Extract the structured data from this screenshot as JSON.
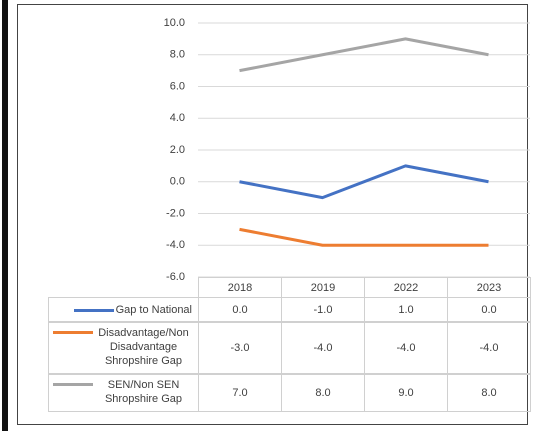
{
  "chart_data": {
    "type": "line",
    "categories": [
      "2018",
      "2019",
      "2022",
      "2023"
    ],
    "series": [
      {
        "name": "Gap to National",
        "color": "#4472c4",
        "values": [
          0,
          -1,
          1,
          0
        ],
        "value_labels": [
          "0.0",
          "-1.0",
          "1.0",
          "0.0"
        ]
      },
      {
        "name": "Disadvantage/Non Disadvantage Shropshire Gap",
        "color": "#ed7d31",
        "values": [
          -3,
          -4,
          -4,
          -4
        ],
        "value_labels": [
          "-3.0",
          "-4.0",
          "-4.0",
          "-4.0"
        ]
      },
      {
        "name": "SEN/Non SEN Shropshire Gap",
        "color": "#a5a5a5",
        "values": [
          7,
          8,
          9,
          8
        ],
        "value_labels": [
          "7.0",
          "8.0",
          "9.0",
          "8.0"
        ]
      }
    ],
    "ylim": [
      -6,
      10
    ],
    "yticks": [
      {
        "value": -6,
        "label": "-6.0"
      },
      {
        "value": -4,
        "label": "-4.0"
      },
      {
        "value": -2,
        "label": "-2.0"
      },
      {
        "value": 0,
        "label": "0.0"
      },
      {
        "value": 2,
        "label": "2.0"
      },
      {
        "value": 4,
        "label": "4.0"
      },
      {
        "value": 6,
        "label": "6.0"
      },
      {
        "value": 8,
        "label": "8.0"
      },
      {
        "value": 10,
        "label": "10.0"
      }
    ],
    "grid": true,
    "legend": "table"
  }
}
